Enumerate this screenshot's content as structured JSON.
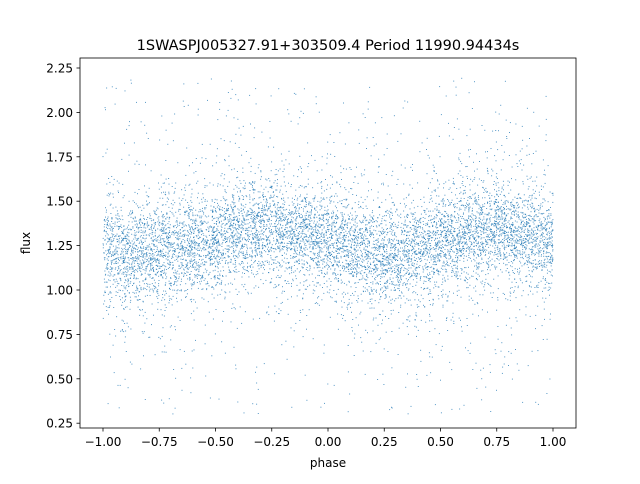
{
  "chart_data": {
    "type": "scatter",
    "title": "1SWASPJ005327.91+303509.4 Period 11990.94434s",
    "xlabel": "phase",
    "ylabel": "flux",
    "xlim": [
      -1.1,
      1.1
    ],
    "ylim": [
      0.23,
      2.31
    ],
    "xticks": [
      "−1.00",
      "−0.75",
      "−0.50",
      "−0.25",
      "0.00",
      "0.25",
      "0.50",
      "0.75",
      "1.00"
    ],
    "xtick_values": [
      -1,
      -0.75,
      -0.5,
      -0.25,
      0,
      0.25,
      0.5,
      0.75,
      1
    ],
    "yticks": [
      "0.25",
      "0.50",
      "0.75",
      "1.00",
      "1.25",
      "1.50",
      "1.75",
      "2.00",
      "2.25"
    ],
    "ytick_values": [
      0.25,
      0.5,
      0.75,
      1.0,
      1.25,
      1.5,
      1.75,
      2.0,
      2.25
    ],
    "grid": false,
    "marker_color": "#1f77b4",
    "series": [
      {
        "phase": [
          -1.0,
          -0.875,
          -0.75,
          -0.625,
          -0.5,
          -0.375,
          -0.25,
          -0.125,
          0.0,
          0.125,
          0.25,
          0.375,
          0.5,
          0.625,
          0.75,
          0.875,
          1.0
        ],
        "flux": [
          1.23,
          1.21,
          1.23,
          1.26,
          1.29,
          1.33,
          1.35,
          1.32,
          1.27,
          1.22,
          1.2,
          1.22,
          1.26,
          1.31,
          1.35,
          1.32,
          1.25
        ],
        "flux_spread": 0.13,
        "flux_range": [
          0.3,
          2.2
        ]
      }
    ]
  }
}
